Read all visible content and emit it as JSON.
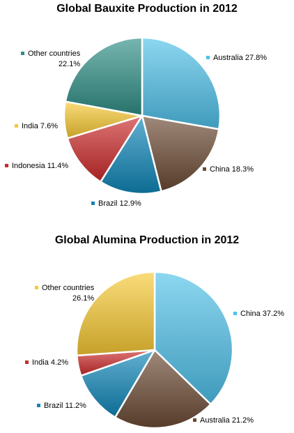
{
  "chart_data": [
    {
      "type": "pie",
      "title": "Global Bauxite Production in 2012",
      "slices": [
        {
          "label": "Australia",
          "value": 27.8,
          "text": "Australia 27.8%",
          "color": "#4fc1ea"
        },
        {
          "label": "China",
          "value": 18.3,
          "text": "China 18.3%",
          "color": "#6b4a33"
        },
        {
          "label": "Brazil",
          "value": 12.9,
          "text": "Brazil 12.9%",
          "color": "#0f86b8"
        },
        {
          "label": "Indonesia",
          "value": 11.4,
          "text": "Indonesia 11.4%",
          "color": "#cc2a2a"
        },
        {
          "label": "India",
          "value": 7.6,
          "text": "India 7.6%",
          "color": "#f7c933"
        },
        {
          "label": "Other countries",
          "value": 22.1,
          "text": "Other countries",
          "text2": "22.1%",
          "color": "#2f8f86"
        }
      ]
    },
    {
      "type": "pie",
      "title": "Global Alumina Production in 2012",
      "slices": [
        {
          "label": "China",
          "value": 37.2,
          "text": "China 37.2%",
          "color": "#4fc1ea"
        },
        {
          "label": "Australia",
          "value": 21.2,
          "text": "Australia 21.2%",
          "color": "#6b4a33"
        },
        {
          "label": "Brazil",
          "value": 11.2,
          "text": "Brazil 11.2%",
          "color": "#0f86b8"
        },
        {
          "label": "India",
          "value": 4.2,
          "text": "India 4.2%",
          "color": "#cc2a2a"
        },
        {
          "label": "Other countries",
          "value": 26.1,
          "text": "Other countries",
          "text2": "26.1%",
          "color": "#f7c933"
        }
      ]
    }
  ]
}
